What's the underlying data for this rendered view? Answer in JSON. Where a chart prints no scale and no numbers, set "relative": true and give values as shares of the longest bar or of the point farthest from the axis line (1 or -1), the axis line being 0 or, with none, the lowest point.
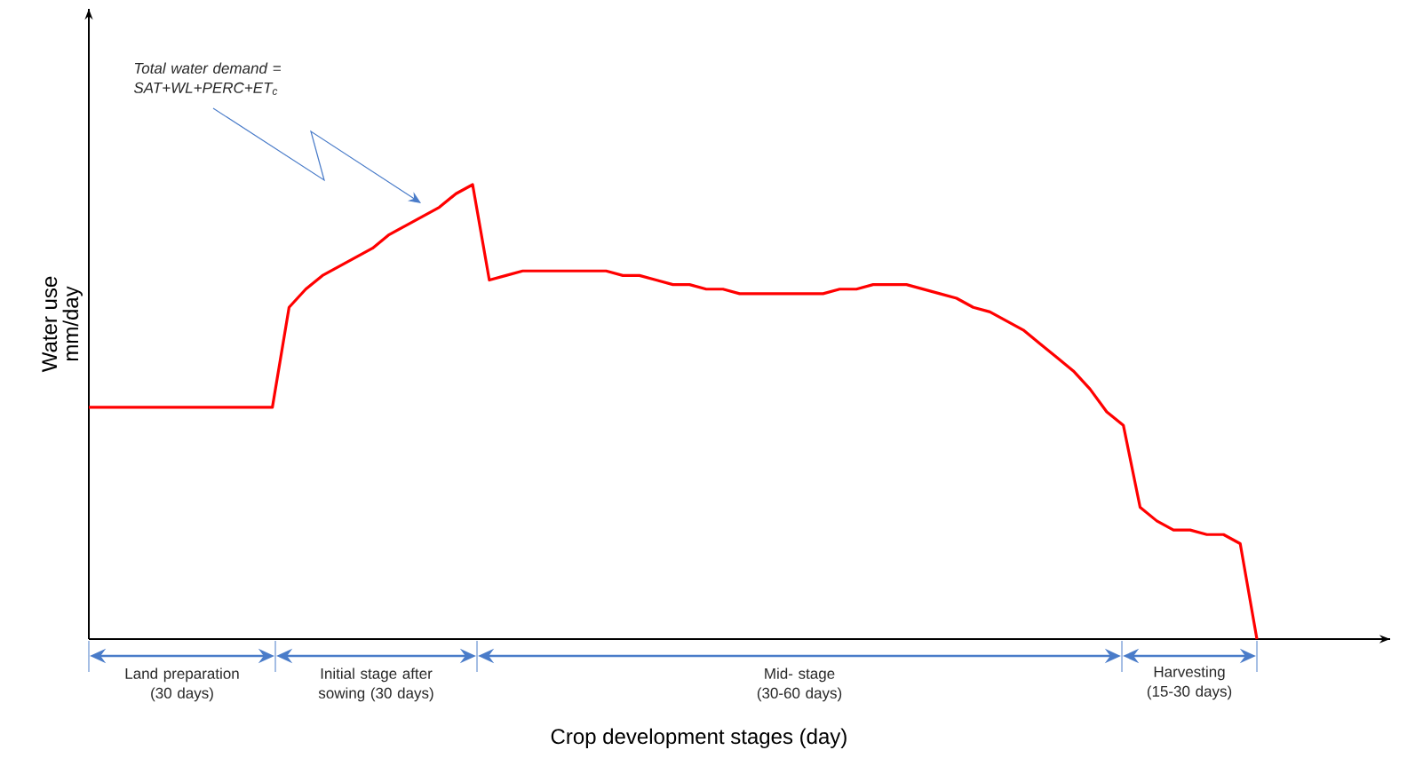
{
  "chart_data": {
    "type": "line",
    "relative": true,
    "xlabel": "Crop development stages (day)",
    "ylabel": "Water use mm/day",
    "categories": [
      null,
      null,
      null,
      null,
      null,
      null,
      null,
      null,
      null,
      null,
      null,
      null,
      null,
      null,
      null,
      null,
      null,
      null,
      null,
      null,
      null,
      null,
      null,
      null,
      null,
      null,
      null,
      null,
      null,
      null,
      null,
      null,
      null,
      null,
      null,
      null,
      null,
      null,
      null,
      null,
      null,
      null,
      null,
      null,
      null,
      null,
      null,
      null,
      null,
      null,
      null,
      null,
      null,
      null,
      null,
      null,
      null,
      null,
      null,
      null,
      null,
      null,
      null,
      null,
      null,
      null,
      null,
      null,
      null,
      null,
      null
    ],
    "series": [
      {
        "color": "#ff0000",
        "values": [
          0.51,
          0.51,
          0.51,
          0.51,
          0.51,
          0.51,
          0.51,
          0.51,
          0.51,
          0.51,
          0.51,
          0.51,
          0.73,
          0.77,
          0.8,
          0.82,
          0.84,
          0.86,
          0.89,
          0.91,
          0.93,
          0.95,
          0.98,
          1,
          0.79,
          0.8,
          0.81,
          0.81,
          0.81,
          0.81,
          0.81,
          0.81,
          0.8,
          0.8,
          0.79,
          0.78,
          0.78,
          0.77,
          0.77,
          0.76,
          0.76,
          0.76,
          0.76,
          0.76,
          0.76,
          0.77,
          0.77,
          0.78,
          0.78,
          0.78,
          0.77,
          0.76,
          0.75,
          0.73,
          0.72,
          0.7,
          0.68,
          0.65,
          0.62,
          0.59,
          0.55,
          0.5,
          0.47,
          0.29,
          0.26,
          0.24,
          0.24,
          0.23,
          0.23,
          0.21,
          0
        ]
      }
    ],
    "annotations": [
      "Total water demand = SAT+WL+PERC+ET$_{c}$",
      "Land preparation (30 days)",
      "Initial stage after sowing (30 days)",
      "Mid- stage (30-60 days)",
      "Harvesting (15-30 days)"
    ]
  }
}
